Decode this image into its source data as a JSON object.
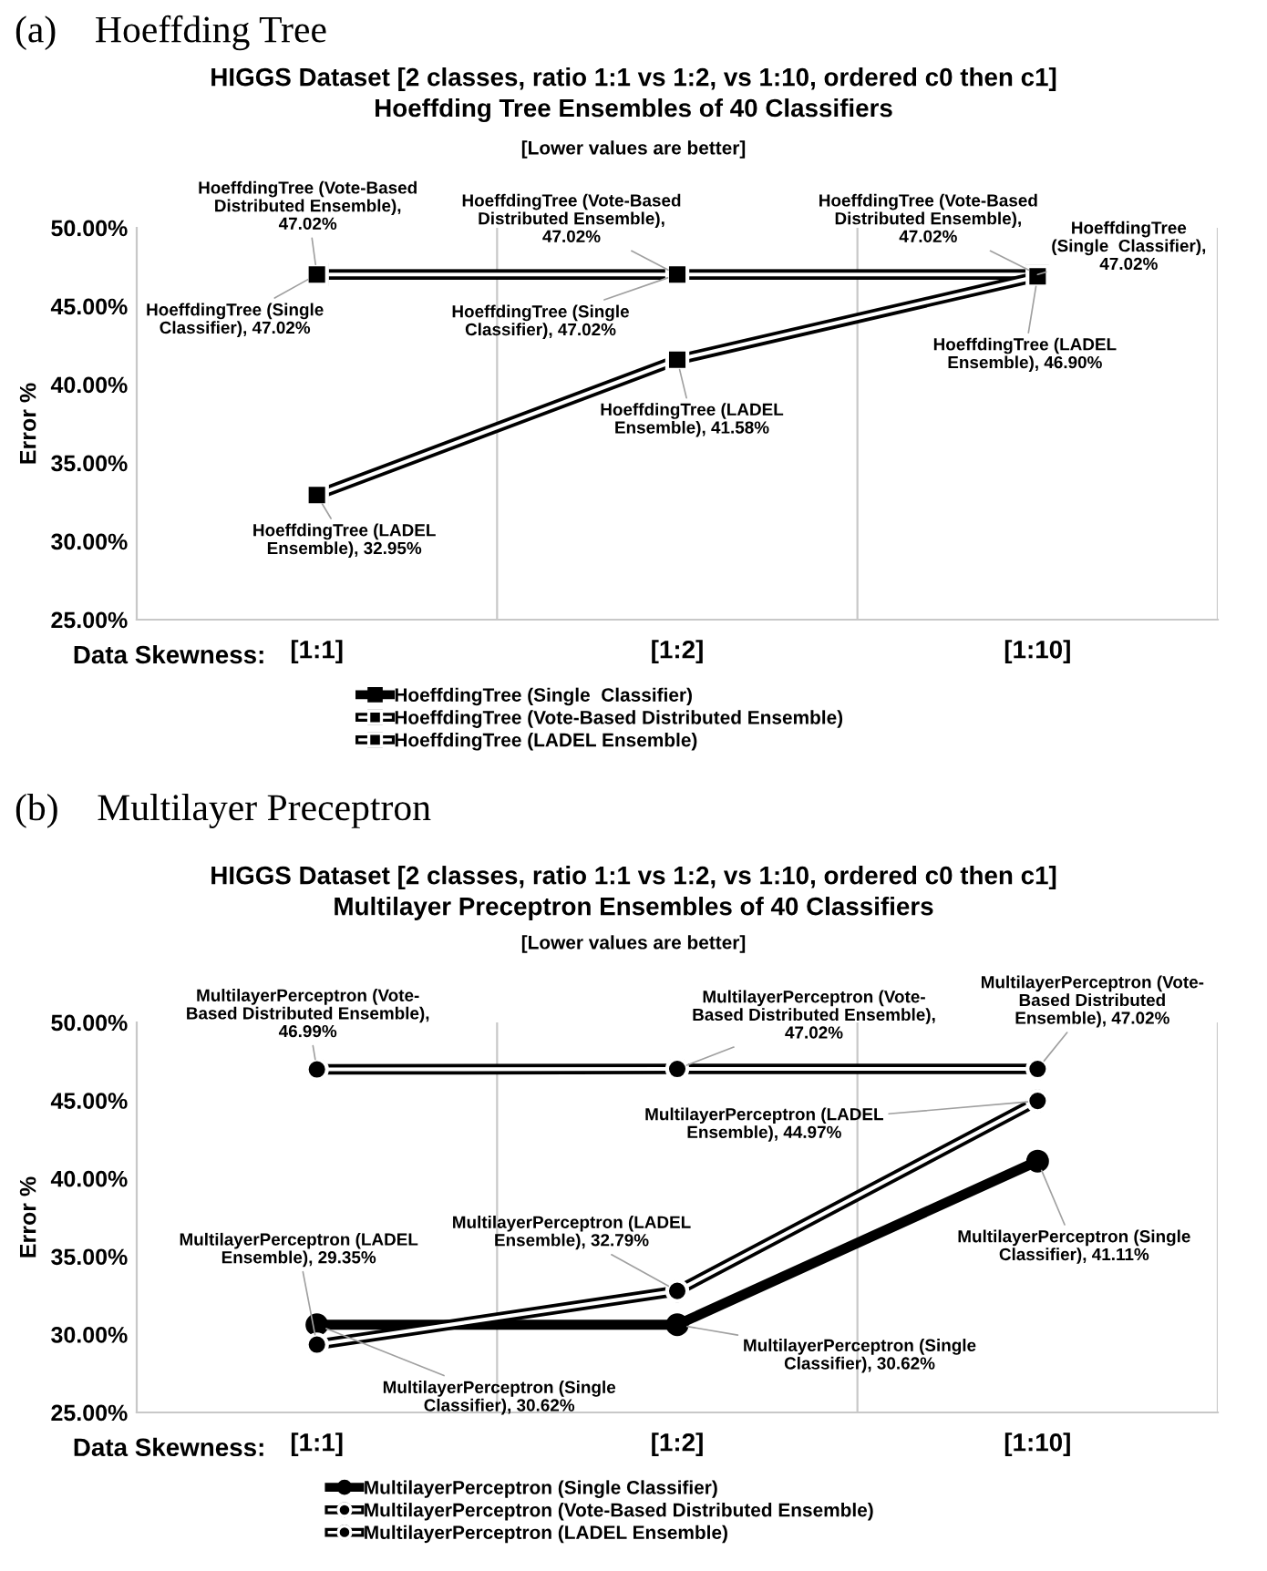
{
  "chart_data": [
    {
      "type": "line",
      "title": "HIGGS Dataset [2 classes, ratio 1:1 vs 1:2, vs 1:10, ordered c0 then c1]\nHoeffding Tree Ensembles of 40 Classifiers",
      "subtitle": "[Lower values are better]",
      "xlabel": "Data Skewness:",
      "ylabel": "Error %",
      "annotations": [
        "(a)    Hoeffding Tree"
      ],
      "categories": [
        "[1:1]",
        "[1:2]",
        "[1:10]"
      ],
      "series": [
        {
          "name": "HoeffdingTree (Single  Classifier)",
          "color": "#000000",
          "values": [
            47.02,
            47.02,
            47.02
          ],
          "value_labels": [
            "HoeffdingTree (Single\nClassifier), 47.02%",
            "HoeffdingTree (Single\nClassifier), 47.02%",
            "HoeffdingTree\n(Single  Classifier),\n47.02%"
          ]
        },
        {
          "name": "HoeffdingTree (Vote-Based Distributed Ensemble)",
          "color": "#000000",
          "values": [
            47.02,
            47.02,
            47.02
          ],
          "value_labels": [
            "HoeffdingTree (Vote-Based\nDistributed Ensemble),\n47.02%",
            "HoeffdingTree (Vote-Based\nDistributed Ensemble),\n47.02%",
            "HoeffdingTree (Vote-Based\nDistributed Ensemble),\n47.02%"
          ]
        },
        {
          "name": "HoeffdingTree (LADEL Ensemble)",
          "color": "#000000",
          "values": [
            32.95,
            41.58,
            46.9
          ],
          "value_labels": [
            "HoeffdingTree (LADEL\nEnsemble), 32.95%",
            "HoeffdingTree (LADEL\nEnsemble), 41.58%",
            "HoeffdingTree (LADEL\nEnsemble), 46.90%"
          ]
        }
      ],
      "ylim": [
        25,
        50
      ],
      "yticks": [
        {
          "value": 25,
          "label": "25.00%"
        },
        {
          "value": 30,
          "label": "30.00%"
        },
        {
          "value": 35,
          "label": "35.00%"
        },
        {
          "value": 40,
          "label": "40.00%"
        },
        {
          "value": 45,
          "label": "45.00%"
        },
        {
          "value": 50,
          "label": "50.00%"
        }
      ],
      "grid": "x",
      "legend": "bottom",
      "marker": "square",
      "line_style": "solid"
    },
    {
      "type": "line",
      "title": "HIGGS Dataset [2 classes, ratio 1:1 vs 1:2, vs 1:10, ordered c0 then c1]\nMultilayer Preceptron Ensembles of 40 Classifiers",
      "subtitle": "[Lower values are better]",
      "xlabel": "Data Skewness:",
      "ylabel": "Error %",
      "annotations": [
        "(b)    Multilayer Preceptron"
      ],
      "categories": [
        "[1:1]",
        "[1:2]",
        "[1:10]"
      ],
      "series": [
        {
          "name": "MultilayerPerceptron (Single Classifier)",
          "color": "#000000",
          "values": [
            30.62,
            30.62,
            41.11
          ],
          "value_labels": [
            "MultilayerPerceptron (Single\nClassifier), 30.62%",
            "MultilayerPerceptron (Single\nClassifier), 30.62%",
            "MultilayerPerceptron (Single\nClassifier), 41.11%"
          ]
        },
        {
          "name": "MultilayerPerceptron (Vote-Based Distributed Ensemble)",
          "color": "#000000",
          "values": [
            46.99,
            47.02,
            47.02
          ],
          "value_labels": [
            "MultilayerPerceptron (Vote-\nBased Distributed Ensemble),\n46.99%",
            "MultilayerPerceptron (Vote-\nBased Distributed Ensemble),\n47.02%",
            "MultilayerPerceptron (Vote-\nBased Distributed\nEnsemble), 47.02%"
          ]
        },
        {
          "name": "MultilayerPerceptron (LADEL Ensemble)",
          "color": "#000000",
          "values": [
            29.35,
            32.79,
            44.97
          ],
          "value_labels": [
            "MultilayerPerceptron (LADEL\nEnsemble), 29.35%",
            "MultilayerPerceptron (LADEL\nEnsemble), 32.79%",
            "MultilayerPerceptron (LADEL\nEnsemble), 44.97%"
          ]
        }
      ],
      "ylim": [
        25,
        50
      ],
      "yticks": [
        {
          "value": 25,
          "label": "25.00%"
        },
        {
          "value": 30,
          "label": "30.00%"
        },
        {
          "value": 35,
          "label": "35.00%"
        },
        {
          "value": 40,
          "label": "40.00%"
        },
        {
          "value": 45,
          "label": "45.00%"
        },
        {
          "value": 50,
          "label": "50.00%"
        }
      ],
      "grid": "x",
      "legend": "bottom",
      "marker": "circle",
      "line_style": "solid"
    }
  ]
}
